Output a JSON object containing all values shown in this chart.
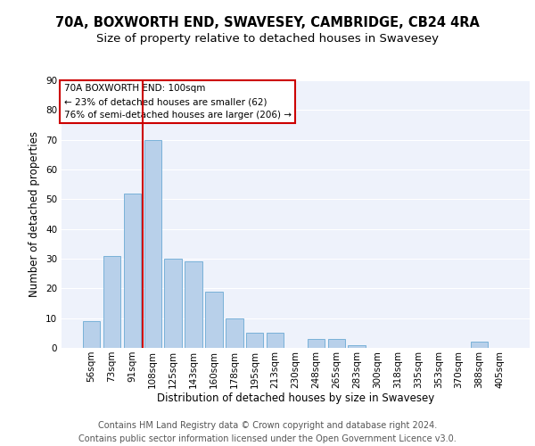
{
  "title1": "70A, BOXWORTH END, SWAVESEY, CAMBRIDGE, CB24 4RA",
  "title2": "Size of property relative to detached houses in Swavesey",
  "xlabel": "Distribution of detached houses by size in Swavesey",
  "ylabel": "Number of detached properties",
  "categories": [
    "56sqm",
    "73sqm",
    "91sqm",
    "108sqm",
    "125sqm",
    "143sqm",
    "160sqm",
    "178sqm",
    "195sqm",
    "213sqm",
    "230sqm",
    "248sqm",
    "265sqm",
    "283sqm",
    "300sqm",
    "318sqm",
    "335sqm",
    "353sqm",
    "370sqm",
    "388sqm",
    "405sqm"
  ],
  "values": [
    9,
    31,
    52,
    70,
    30,
    29,
    19,
    10,
    5,
    5,
    0,
    3,
    3,
    1,
    0,
    0,
    0,
    0,
    0,
    2,
    0
  ],
  "bar_color": "#b8d0ea",
  "bar_edge_color": "#6aaad4",
  "background_color": "#eef2fb",
  "grid_color": "#ffffff",
  "vline_x": 2.5,
  "vline_color": "#cc0000",
  "annotation_text": "70A BOXWORTH END: 100sqm\n← 23% of detached houses are smaller (62)\n76% of semi-detached houses are larger (206) →",
  "annotation_box_color": "#ffffff",
  "annotation_box_edge": "#cc0000",
  "ylim": [
    0,
    90
  ],
  "yticks": [
    0,
    10,
    20,
    30,
    40,
    50,
    60,
    70,
    80,
    90
  ],
  "footer": "Contains HM Land Registry data © Crown copyright and database right 2024.\nContains public sector information licensed under the Open Government Licence v3.0.",
  "title_fontsize": 10.5,
  "subtitle_fontsize": 9.5,
  "axis_label_fontsize": 8.5,
  "tick_fontsize": 7.5,
  "footer_fontsize": 7.0,
  "annot_fontsize": 7.5
}
